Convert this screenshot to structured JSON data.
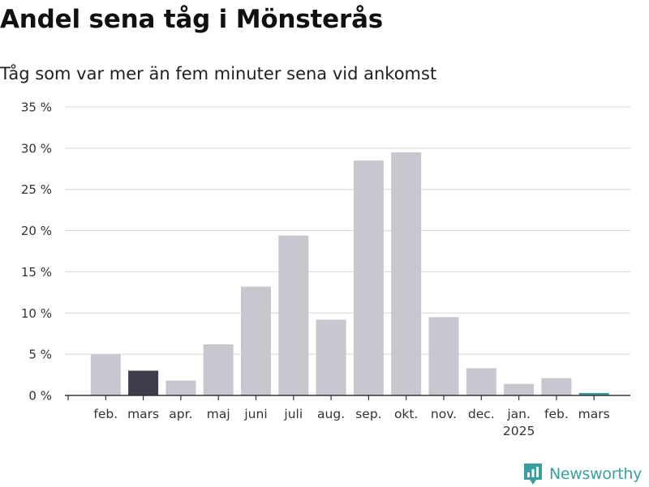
{
  "title": "Andel sena tåg i Mönsterås",
  "subtitle": "Tåg som var mer än fem minuter sena vid ankomst",
  "brand": {
    "name": "Newsworthy",
    "color": "#3a9ea0",
    "icon": "newsworthy-logo-icon"
  },
  "colors": {
    "default_bar": "#c8c7cf",
    "highlight_bar": "#3d3c4b",
    "latest_bar": "#3a9ea0",
    "grid": "#dddddd",
    "axis": "#333333"
  },
  "chart_data": {
    "type": "bar",
    "categories": [
      "feb.",
      "mars",
      "apr.",
      "maj",
      "juni",
      "juli",
      "aug.",
      "sep.",
      "okt.",
      "nov.",
      "dec.",
      "jan.",
      "feb.",
      "mars"
    ],
    "year_labels": [
      "",
      "",
      "",
      "",
      "",
      "",
      "",
      "",
      "",
      "",
      "",
      "2025",
      "",
      ""
    ],
    "values": [
      5.0,
      3.0,
      1.8,
      6.2,
      13.2,
      19.4,
      9.2,
      28.5,
      29.5,
      9.5,
      3.3,
      1.4,
      2.1,
      0.3
    ],
    "bar_styles": [
      "default",
      "highlight",
      "default",
      "default",
      "default",
      "default",
      "default",
      "default",
      "default",
      "default",
      "default",
      "default",
      "default",
      "latest"
    ],
    "ylim": [
      0,
      35
    ],
    "yticks": [
      0,
      5,
      10,
      15,
      20,
      25,
      30,
      35
    ],
    "ytick_labels": [
      "0 %",
      "5 %",
      "10 %",
      "15 %",
      "20 %",
      "25 %",
      "30 %",
      "35 %"
    ],
    "ylabel": "",
    "xlabel": "",
    "grid": true,
    "legend": "none"
  }
}
